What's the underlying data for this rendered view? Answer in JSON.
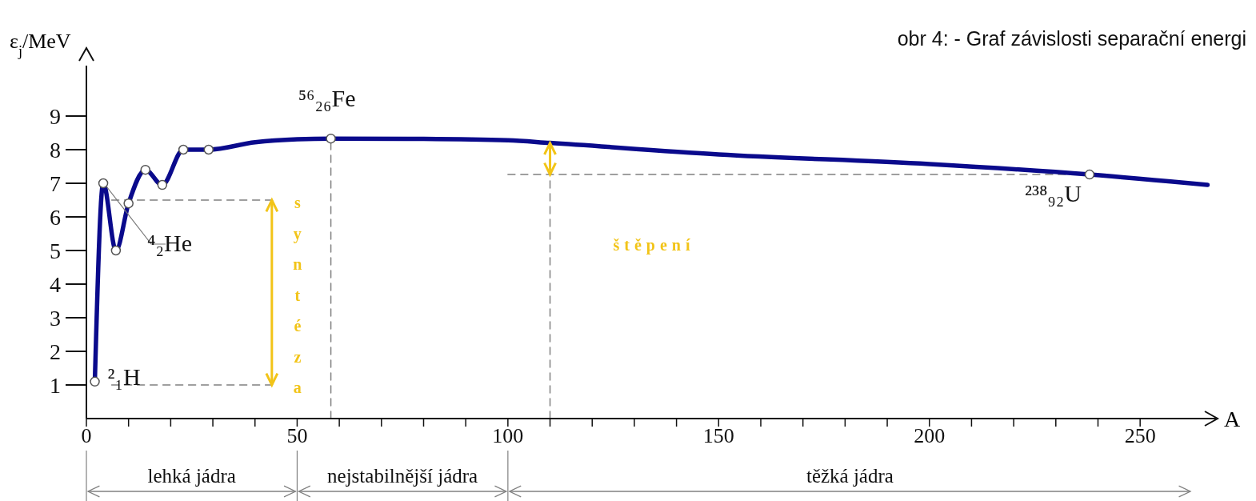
{
  "chart_data": {
    "type": "line",
    "title": "obr 4: - Graf závislosti separační energi",
    "xlabel": "A",
    "ylabel": "ε$_{j}$/MeV",
    "xlim": [
      0,
      268
    ],
    "ylim": [
      0,
      10.5
    ],
    "xticks": [
      0,
      {
        "value": 10,
        "label": null
      },
      {
        "value": 20,
        "label": null
      },
      {
        "value": 30,
        "label": null
      },
      {
        "value": 40,
        "label": null
      },
      50,
      {
        "value": 60,
        "label": null
      },
      {
        "value": 70,
        "label": null
      },
      {
        "value": 80,
        "label": null
      },
      {
        "value": 90,
        "label": null
      },
      100,
      {
        "value": 110,
        "label": null
      },
      {
        "value": 120,
        "label": null
      },
      {
        "value": 130,
        "label": null
      },
      {
        "value": 140,
        "label": null
      },
      150,
      {
        "value": 160,
        "label": null
      },
      {
        "value": 170,
        "label": null
      },
      {
        "value": 180,
        "label": null
      },
      {
        "value": 190,
        "label": null
      },
      200,
      {
        "value": 210,
        "label": null
      },
      {
        "value": 220,
        "label": null
      },
      {
        "value": 230,
        "label": null
      },
      {
        "value": 240,
        "label": null
      },
      250
    ],
    "yticks": [
      1,
      2,
      3,
      4,
      5,
      6,
      7,
      8,
      9
    ],
    "series": [
      {
        "color": "#0a0a8c",
        "marker": "none",
        "line_style": "solid",
        "x": [
          2,
          4,
          7,
          10,
          14,
          18,
          23,
          29,
          40,
          50,
          58,
          80,
          100,
          110,
          150,
          200,
          238,
          266
        ],
        "values": [
          1.1,
          7.0,
          5.0,
          6.4,
          7.4,
          6.95,
          8.0,
          8.0,
          8.22,
          8.31,
          8.33,
          8.32,
          8.28,
          8.2,
          7.86,
          7.57,
          7.26,
          6.95
        ]
      },
      {
        "type": "scatter",
        "color": "#ffffff",
        "marker": "circle",
        "x": [
          2,
          4,
          7,
          10,
          14,
          18,
          23,
          29,
          58,
          238
        ],
        "values": [
          1.1,
          7.0,
          5.0,
          6.4,
          7.4,
          6.95,
          8.0,
          8.0,
          8.33,
          7.26
        ]
      },
      {
        "type": "line",
        "color": "#808080",
        "marker": "none",
        "line_style": "dashed",
        "x": [
          6,
          44
        ],
        "values": [
          6.5,
          6.5
        ]
      },
      {
        "type": "line",
        "color": "#808080",
        "marker": "none",
        "line_style": "dashed",
        "x": [
          6,
          44
        ],
        "values": [
          1,
          1
        ]
      },
      {
        "type": "line",
        "color": "#808080",
        "marker": "none",
        "line_style": "dashed",
        "x": [
          58,
          58
        ],
        "values": [
          0,
          8.33
        ]
      },
      {
        "type": "line",
        "color": "#808080",
        "marker": "none",
        "line_style": "dashed",
        "x": [
          110,
          110
        ],
        "values": [
          0,
          7.26
        ]
      },
      {
        "type": "line",
        "color": "#808080",
        "marker": "none",
        "line_style": "dashed",
        "x": [
          100,
          238
        ],
        "values": [
          7.26,
          7.26
        ]
      }
    ],
    "annotations": [
      {
        "text": "²₁H",
        "x": 2,
        "y": 1.1
      },
      {
        "text": "⁴₂He",
        "x": 4,
        "y": 7.0
      },
      {
        "text": "⁵⁶₂₆Fe",
        "x": 58,
        "y": 8.33
      },
      {
        "text": "²³⁸₉₂U",
        "x": 238,
        "y": 7.26
      },
      "syntéza",
      "štěpení",
      "lehká jádra",
      "nejstabilnější jádra",
      "těžká jádra"
    ]
  }
}
